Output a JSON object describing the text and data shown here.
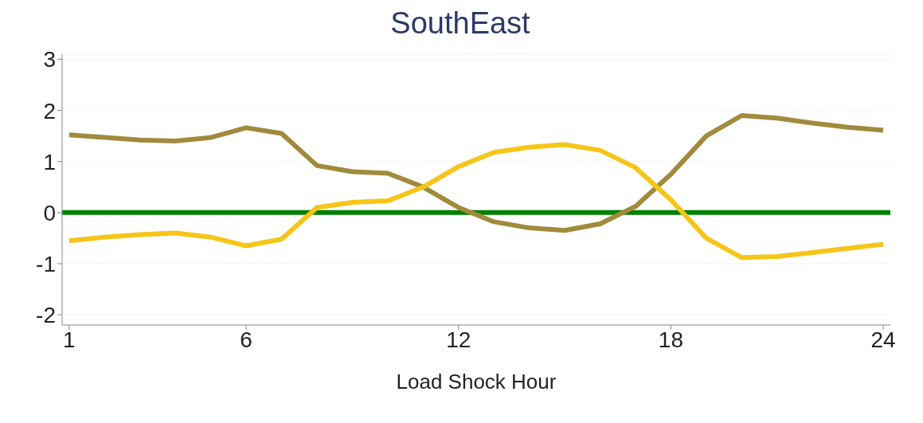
{
  "chart_data": {
    "type": "line",
    "title": "SouthEast",
    "xlabel": "Load Shock Hour",
    "x": [
      1,
      2,
      3,
      4,
      5,
      6,
      7,
      8,
      9,
      10,
      11,
      12,
      13,
      14,
      15,
      16,
      17,
      18,
      19,
      20,
      21,
      22,
      23,
      24
    ],
    "series": [
      {
        "color": "#a08a3c",
        "values": [
          1.52,
          1.47,
          1.42,
          1.4,
          1.47,
          1.66,
          1.55,
          0.92,
          0.8,
          0.77,
          0.5,
          0.1,
          -0.18,
          -0.3,
          -0.35,
          -0.22,
          0.12,
          0.75,
          1.5,
          1.9,
          1.85,
          1.75,
          1.67,
          1.61
        ]
      },
      {
        "color": "#f5c518",
        "values": [
          -0.55,
          -0.48,
          -0.43,
          -0.4,
          -0.48,
          -0.65,
          -0.52,
          0.1,
          0.2,
          0.23,
          0.5,
          0.9,
          1.18,
          1.28,
          1.33,
          1.22,
          0.88,
          0.25,
          -0.5,
          -0.88,
          -0.86,
          -0.78,
          -0.7,
          -0.62
        ]
      }
    ],
    "ref_lines": [
      {
        "axis": "y",
        "value": 0,
        "color": "#008000"
      }
    ],
    "xlim": [
      0.8,
      24.2
    ],
    "xticks": [
      1,
      6,
      12,
      18,
      24
    ],
    "ylim": [
      -2.2,
      3.1
    ],
    "yticks": [
      -2,
      -1,
      0,
      1,
      2,
      3
    ],
    "grid": "y",
    "marker": "none",
    "line_style": "solid"
  }
}
